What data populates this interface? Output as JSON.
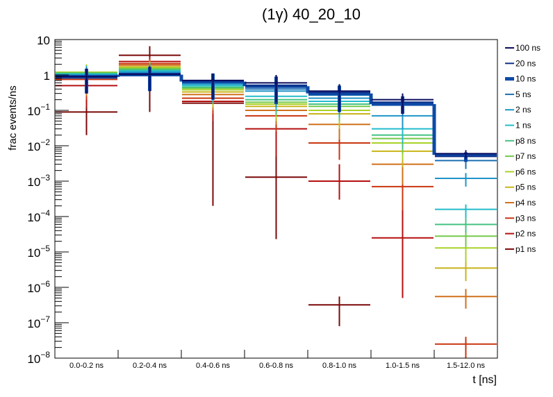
{
  "chart_data": {
    "type": "line",
    "subtype": "step-histogram-with-errorbars",
    "title": "(1γ) 40_20_10",
    "xlabel": "t [ns]",
    "ylabel": "frac events/ns",
    "yscale": "log",
    "ylim": [
      1e-08,
      10
    ],
    "ytick_labels": [
      {
        "base": "10",
        "exp": "",
        "value": 10
      },
      {
        "base": "1",
        "exp": "",
        "value": 1
      },
      {
        "base": "10",
        "exp": "−1",
        "value": 0.1
      },
      {
        "base": "10",
        "exp": "−2",
        "value": 0.01
      },
      {
        "base": "10",
        "exp": "−3",
        "value": 0.001
      },
      {
        "base": "10",
        "exp": "−4",
        "value": 0.0001
      },
      {
        "base": "10",
        "exp": "−5",
        "value": 1e-05
      },
      {
        "base": "10",
        "exp": "−6",
        "value": 1e-06
      },
      {
        "base": "10",
        "exp": "−7",
        "value": 1e-07
      },
      {
        "base": "10",
        "exp": "−8",
        "value": 1e-08
      }
    ],
    "categories": [
      "0.0-0.2 ns",
      "0.2-0.4 ns",
      "0.4-0.6 ns",
      "0.6-0.8 ns",
      "0.8-1.0 ns",
      "1.0-1.5 ns",
      "1.5-12.0 ns"
    ],
    "grid": false,
    "legend_position": "right",
    "series": [
      {
        "name": "100 ns",
        "color": "#0a0a5e",
        "width": 2,
        "values": [
          0.9,
          1.05,
          0.7,
          0.6,
          0.35,
          0.2,
          0.006
        ],
        "err_lo": [
          0.3,
          0.35,
          0.2,
          0.17,
          0.09,
          0.08,
          0.0045
        ],
        "err_hi": [
          1.5,
          1.7,
          1.1,
          1.0,
          0.55,
          0.3,
          0.0075
        ]
      },
      {
        "name": "20 ns",
        "color": "#0c2f8a",
        "width": 2,
        "values": [
          0.9,
          1.05,
          0.68,
          0.5,
          0.32,
          0.17,
          0.005
        ],
        "err_lo": [
          0.3,
          0.35,
          0.2,
          0.17,
          0.09,
          0.08,
          0.004
        ],
        "err_hi": [
          1.5,
          1.7,
          1.1,
          0.9,
          0.5,
          0.28,
          0.0065
        ]
      },
      {
        "name": "10 ns",
        "color": "#0d4aa6",
        "width": 5,
        "values": [
          0.88,
          1.02,
          0.65,
          0.48,
          0.3,
          0.15,
          0.0055
        ],
        "err_lo": [
          0.3,
          0.35,
          0.2,
          0.15,
          0.09,
          0.08,
          0.0035
        ],
        "err_hi": [
          1.5,
          1.7,
          1.1,
          0.9,
          0.5,
          0.25,
          0.0065
        ]
      },
      {
        "name": "5 ns",
        "color": "#1a6fb3",
        "width": 2,
        "values": [
          0.95,
          1.1,
          0.6,
          0.4,
          0.27,
          0.14,
          0.0038
        ],
        "err_lo": [
          0.3,
          0.4,
          0.2,
          0.15,
          0.09,
          0.07,
          0.0022
        ],
        "err_hi": [
          1.6,
          1.8,
          1.0,
          0.8,
          0.45,
          0.22,
          0.0048
        ]
      },
      {
        "name": "2 ns",
        "color": "#1d94c8",
        "width": 2,
        "values": [
          1.0,
          1.2,
          0.55,
          0.35,
          0.22,
          0.07,
          0.0012
        ],
        "err_lo": [
          0.35,
          0.4,
          0.2,
          0.12,
          0.08,
          0.03,
          0.0007
        ],
        "err_hi": [
          1.7,
          1.9,
          0.95,
          0.7,
          0.4,
          0.12,
          0.0017
        ]
      },
      {
        "name": "1 ns",
        "color": "#22bccc",
        "width": 2,
        "values": [
          1.05,
          1.3,
          0.5,
          0.25,
          0.18,
          0.03,
          0.00016
        ],
        "err_lo": [
          0.35,
          0.45,
          0.18,
          0.1,
          0.07,
          0.012,
          9e-05
        ],
        "err_hi": [
          1.8,
          2.0,
          0.9,
          0.55,
          0.35,
          0.05,
          0.00022
        ]
      },
      {
        "name": "p8 ns",
        "color": "#43c282",
        "width": 2,
        "values": [
          1.1,
          1.4,
          0.45,
          0.2,
          0.15,
          0.02,
          6e-05
        ],
        "err_lo": [
          0.35,
          0.5,
          0.16,
          0.08,
          0.06,
          0.008,
          3.5e-05
        ],
        "err_hi": [
          1.8,
          2.1,
          0.85,
          0.5,
          0.3,
          0.035,
          9e-05
        ]
      },
      {
        "name": "p7 ns",
        "color": "#74c94a",
        "width": 2,
        "values": [
          1.15,
          1.5,
          0.42,
          0.17,
          0.13,
          0.016,
          2.8e-05
        ],
        "err_lo": [
          0.35,
          0.5,
          0.15,
          0.07,
          0.05,
          0.006,
          1.4e-05
        ],
        "err_hi": [
          1.9,
          2.2,
          0.8,
          0.45,
          0.28,
          0.03,
          4.5e-05
        ]
      },
      {
        "name": "p6 ns",
        "color": "#a8d228",
        "width": 2,
        "values": [
          1.2,
          1.6,
          0.38,
          0.15,
          0.1,
          0.012,
          1.3e-05
        ],
        "err_lo": [
          0.35,
          0.55,
          0.14,
          0.06,
          0.04,
          0.004,
          5e-06
        ],
        "err_hi": [
          2.0,
          2.3,
          0.75,
          0.4,
          0.25,
          0.025,
          2.2e-05
        ]
      },
      {
        "name": "p5 ns",
        "color": "#c8b41a",
        "width": 2,
        "values": [
          1.0,
          1.7,
          0.33,
          0.13,
          0.08,
          0.007,
          3.5e-06
        ],
        "err_lo": [
          0.3,
          0.55,
          0.12,
          0.05,
          0.03,
          0.0025,
          1.5e-06
        ],
        "err_hi": [
          1.8,
          2.4,
          0.7,
          0.35,
          0.2,
          0.015,
          6e-06
        ]
      },
      {
        "name": "p4 ns",
        "color": "#d0701a",
        "width": 2,
        "values": [
          0.9,
          1.9,
          0.28,
          0.1,
          0.04,
          0.003,
          5.5e-07
        ],
        "err_lo": [
          0.25,
          0.6,
          0.1,
          0.04,
          0.015,
          0.0008,
          2.5e-07
        ],
        "err_hi": [
          1.6,
          2.6,
          0.6,
          0.3,
          0.12,
          0.008,
          9e-07
        ]
      },
      {
        "name": "p3 ns",
        "color": "#c9340e",
        "width": 2,
        "values": [
          0.75,
          2.1,
          0.22,
          0.07,
          0.012,
          0.0007,
          2.5e-08
        ],
        "err_lo": [
          0.2,
          0.7,
          0.08,
          0.025,
          0.004,
          0.00015,
          1e-08
        ],
        "err_hi": [
          1.4,
          2.8,
          0.5,
          0.2,
          0.035,
          0.0025,
          4e-08
        ]
      },
      {
        "name": "p2 ns",
        "color": "#b50f0f",
        "width": 2,
        "values": [
          0.5,
          2.4,
          0.18,
          0.03,
          0.001,
          2.5e-05,
          null
        ],
        "err_lo": [
          0.12,
          0.8,
          0.05,
          0.005,
          0.0003,
          5e-07,
          null
        ],
        "err_hi": [
          1.0,
          3.2,
          0.4,
          0.1,
          0.003,
          0.001,
          null
        ]
      },
      {
        "name": "p1 ns",
        "color": "#7a0808",
        "width": 2,
        "values": [
          0.09,
          3.6,
          0.16,
          0.0013,
          3.2e-07,
          null,
          null
        ],
        "err_lo": [
          0.02,
          0.09,
          0.0002,
          2.3e-05,
          8e-08,
          null,
          null
        ],
        "err_hi": [
          0.2,
          6.5,
          0.45,
          0.03,
          5.5e-07,
          null,
          null
        ]
      }
    ]
  }
}
